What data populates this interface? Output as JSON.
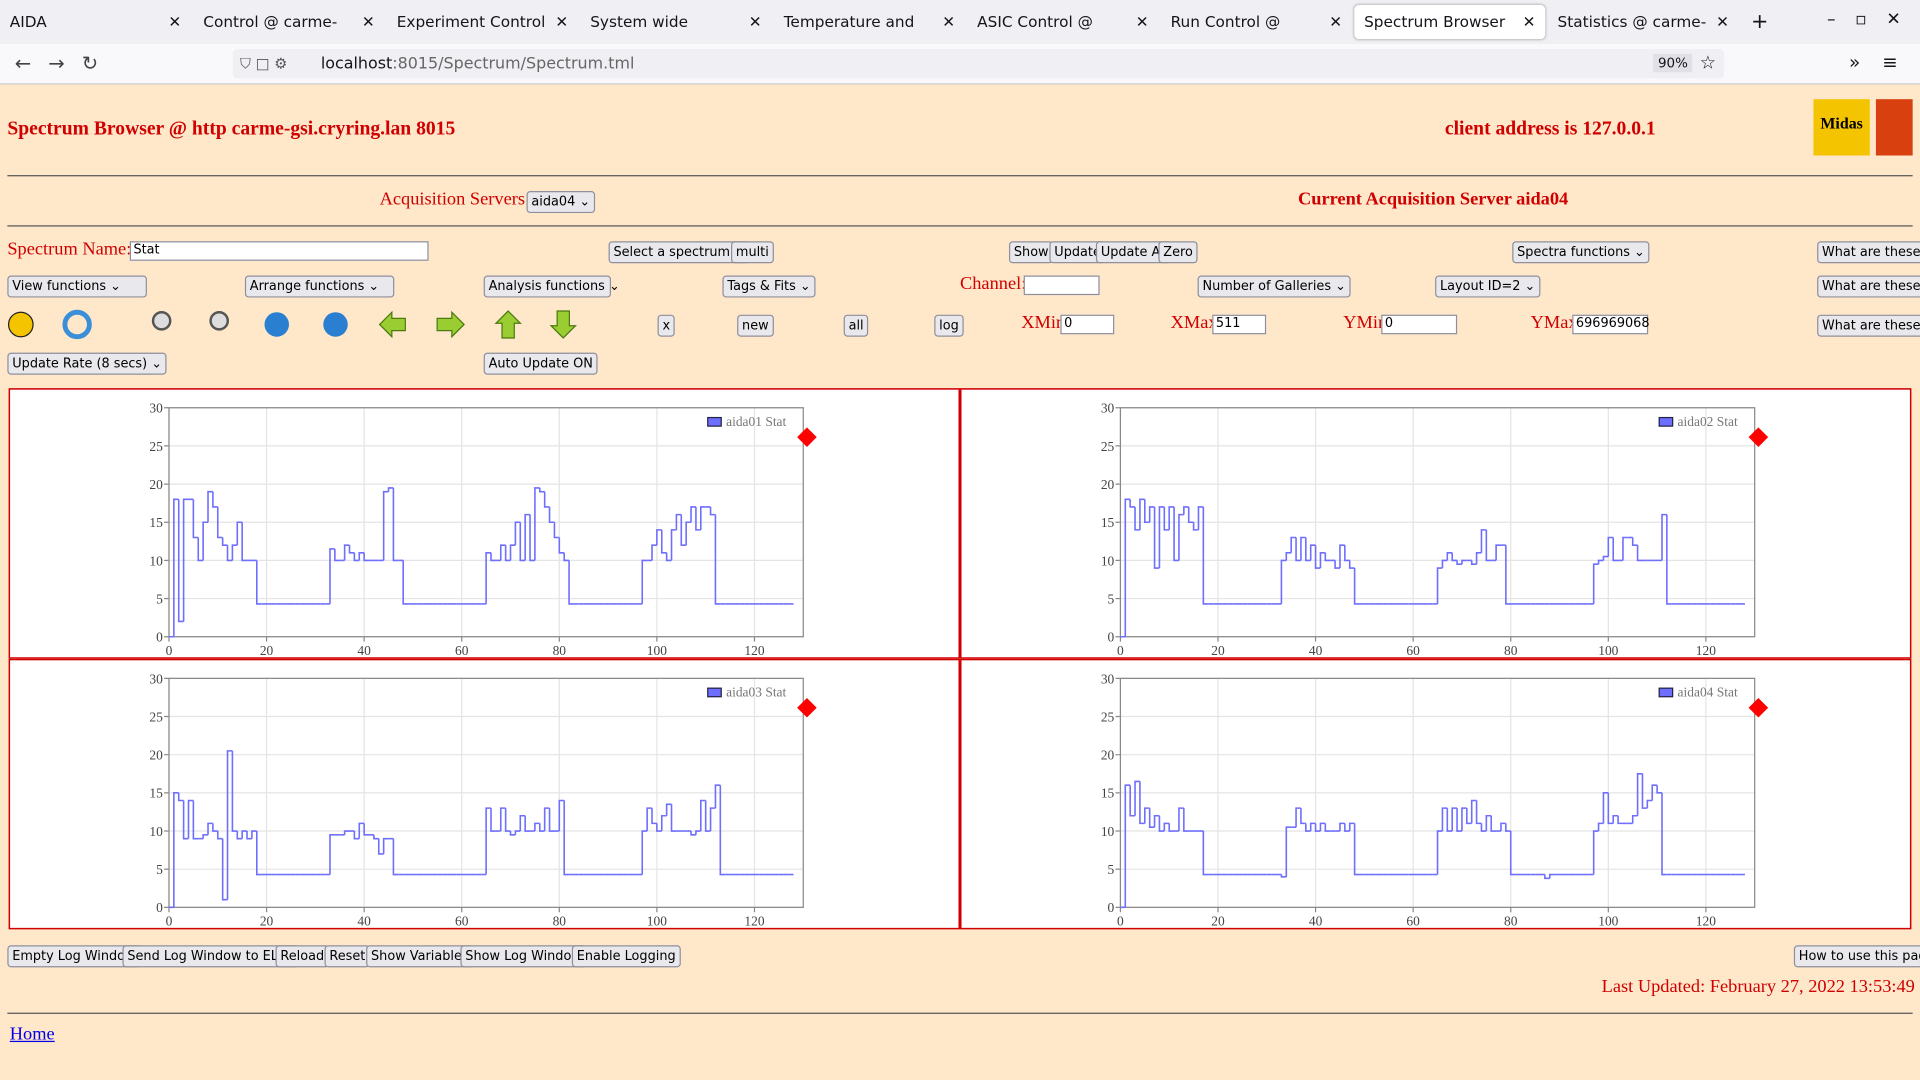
{
  "browser": {
    "tabs": [
      "AIDA",
      "Control @ carme-gsi",
      "Experiment Control @ ca",
      "System wide Checks @ c",
      "Temperature and status",
      "ASIC Control @ carme-g",
      "Run Control @ carme-gs",
      "Spectrum Browser @ ca",
      "Statistics @ carme-gsi"
    ],
    "url_host": "localhost",
    "url_rest": ":8015/Spectrum/Spectrum.tml",
    "zoom": "90%"
  },
  "header": {
    "title": "Spectrum Browser @ http carme-gsi.cryring.lan 8015",
    "client": "client address is 127.0.0.1",
    "logo": "Midas"
  },
  "servers": {
    "label": "Acquisition Servers",
    "selected": "aida04",
    "current": "Current Acquisition Server aida04"
  },
  "controls": {
    "spectrum_label": "Spectrum Name:",
    "spectrum_value": "Stat",
    "select_spectrum": "Select a spectrum",
    "multi": "multi",
    "show": "Show",
    "update": "Update",
    "update_all": "Update All",
    "zero": "Zero",
    "spectra_functions": "Spectra functions",
    "help": [
      "What are these?",
      "What are these?",
      "What are these?"
    ],
    "view_functions": "View functions",
    "arrange_functions": "Arrange functions",
    "analysis_functions": "Analysis functions",
    "tags_fits": "Tags & Fits",
    "channel": "Channel:",
    "galleries": "Number of Galleries",
    "layout": "Layout ID=2",
    "x": "x",
    "new": "new",
    "all": "all",
    "log": "log",
    "xmin_label": "XMin",
    "xmin": "0",
    "xmax_label": "XMax",
    "xmax": "511",
    "ymin_label": "YMin",
    "ymin": "0",
    "ymax_label": "YMax",
    "ymax": "696969068",
    "update_rate": "Update Rate (8 secs)",
    "auto_update": "Auto Update ON"
  },
  "chart_data": [
    {
      "type": "line",
      "x": [
        0,
        1,
        2,
        3,
        4,
        5,
        6,
        7,
        8,
        9,
        10,
        11,
        12,
        13,
        14,
        15,
        16,
        17,
        18,
        19,
        20,
        21,
        22,
        23,
        24,
        25,
        26,
        27,
        28,
        29,
        30,
        31,
        32,
        33,
        34,
        35,
        36,
        37,
        38,
        39,
        40,
        41,
        42,
        43,
        44,
        45,
        46,
        47,
        48,
        49,
        50,
        51,
        52,
        53,
        54,
        55,
        56,
        57,
        58,
        59,
        60,
        61,
        62,
        63,
        64,
        65,
        66,
        67,
        68,
        69,
        70,
        71,
        72,
        73,
        74,
        75,
        76,
        77,
        78,
        79,
        80,
        81,
        82,
        83,
        84,
        85,
        86,
        87,
        88,
        89,
        90,
        91,
        92,
        93,
        94,
        95,
        96,
        97,
        98,
        99,
        100,
        101,
        102,
        103,
        104,
        105,
        106,
        107,
        108,
        109,
        110,
        111,
        112,
        113,
        114,
        115,
        116,
        117,
        118,
        119,
        120,
        121,
        122,
        123,
        124,
        125,
        126,
        127
      ],
      "series": [
        {
          "name": "aida01 Stat",
          "color": "#6e6eff",
          "values": [
            0,
            18,
            2,
            18,
            18,
            13,
            10,
            15,
            19,
            17,
            13,
            12,
            10,
            12,
            15,
            10,
            10,
            10,
            4.3,
            4.3,
            4.3,
            4.3,
            4.3,
            4.3,
            4.3,
            4.3,
            4.3,
            4.3,
            4.3,
            4.3,
            4.3,
            4.3,
            4.3,
            11.5,
            10,
            10,
            12,
            11,
            10,
            11,
            10,
            10,
            10,
            10,
            19,
            19.5,
            10,
            10,
            4.3,
            4.3,
            4.3,
            4.3,
            4.3,
            4.3,
            4.3,
            4.3,
            4.3,
            4.3,
            4.3,
            4.3,
            4.3,
            4.3,
            4.3,
            4.3,
            4.3,
            11,
            10,
            10,
            12,
            10,
            12,
            15,
            10,
            16,
            10,
            19.5,
            19,
            17,
            15,
            13,
            11,
            10,
            4.3,
            4.3,
            4.3,
            4.3,
            4.3,
            4.3,
            4.3,
            4.3,
            4.3,
            4.3,
            4.3,
            4.3,
            4.3,
            4.3,
            4.3,
            10,
            10,
            12,
            14,
            11,
            10,
            14,
            16,
            12,
            15,
            17,
            14,
            17,
            17,
            16,
            4.3,
            4.3,
            4.3,
            4.3,
            4.3,
            4.3,
            4.3,
            4.3,
            4.3,
            4.3,
            4.3,
            4.3,
            4.3,
            4.3,
            4.3,
            4.3
          ]
        }
      ],
      "xlim": [
        0,
        130
      ],
      "ylim": [
        0,
        30
      ],
      "xticks": [
        0,
        20,
        40,
        60,
        80,
        100,
        120
      ],
      "yticks": [
        0,
        5,
        10,
        15,
        20,
        25,
        30
      ],
      "grid": true,
      "legend": "upper right"
    },
    {
      "type": "line",
      "x": [
        0,
        1,
        2,
        3,
        4,
        5,
        6,
        7,
        8,
        9,
        10,
        11,
        12,
        13,
        14,
        15,
        16,
        17,
        18,
        19,
        20,
        21,
        22,
        23,
        24,
        25,
        26,
        27,
        28,
        29,
        30,
        31,
        32,
        33,
        34,
        35,
        36,
        37,
        38,
        39,
        40,
        41,
        42,
        43,
        44,
        45,
        46,
        47,
        48,
        49,
        50,
        51,
        52,
        53,
        54,
        55,
        56,
        57,
        58,
        59,
        60,
        61,
        62,
        63,
        64,
        65,
        66,
        67,
        68,
        69,
        70,
        71,
        72,
        73,
        74,
        75,
        76,
        77,
        78,
        79,
        80,
        81,
        82,
        83,
        84,
        85,
        86,
        87,
        88,
        89,
        90,
        91,
        92,
        93,
        94,
        95,
        96,
        97,
        98,
        99,
        100,
        101,
        102,
        103,
        104,
        105,
        106,
        107,
        108,
        109,
        110,
        111,
        112,
        113,
        114,
        115,
        116,
        117,
        118,
        119,
        120,
        121,
        122,
        123,
        124,
        125,
        126,
        127
      ],
      "series": [
        {
          "name": "aida02 Stat",
          "color": "#6e6eff",
          "values": [
            0,
            18,
            17,
            14,
            18,
            15,
            17,
            9,
            17,
            14,
            17,
            10,
            16,
            17,
            15,
            14,
            17,
            4.3,
            4.3,
            4.3,
            4.3,
            4.3,
            4.3,
            4.3,
            4.3,
            4.3,
            4.3,
            4.3,
            4.3,
            4.3,
            4.3,
            4.3,
            4.3,
            10,
            11,
            13,
            10,
            13,
            10,
            12,
            9,
            11,
            10,
            10,
            9,
            12,
            10,
            9,
            4.3,
            4.3,
            4.3,
            4.3,
            4.3,
            4.3,
            4.3,
            4.3,
            4.3,
            4.3,
            4.3,
            4.3,
            4.3,
            4.3,
            4.3,
            4.3,
            4.3,
            9,
            10,
            11,
            10,
            9.5,
            10,
            10,
            9.5,
            11,
            14,
            10,
            10,
            12,
            12,
            4.3,
            4.3,
            4.3,
            4.3,
            4.3,
            4.3,
            4.3,
            4.3,
            4.3,
            4.3,
            4.3,
            4.3,
            4.3,
            4.3,
            4.3,
            4.3,
            4.3,
            4.3,
            9.5,
            10,
            10.5,
            13,
            10,
            10,
            13,
            13,
            12,
            10,
            10,
            10,
            10,
            10,
            16,
            4.3,
            4.3,
            4.3,
            4.3,
            4.3,
            4.3,
            4.3,
            4.3,
            4.3,
            4.3,
            4.3,
            4.3,
            4.3,
            4.3,
            4.3,
            4.3
          ]
        }
      ],
      "xlim": [
        0,
        130
      ],
      "ylim": [
        0,
        30
      ],
      "xticks": [
        0,
        20,
        40,
        60,
        80,
        100,
        120
      ],
      "yticks": [
        0,
        5,
        10,
        15,
        20,
        25,
        30
      ],
      "grid": true,
      "legend": "upper right"
    },
    {
      "type": "line",
      "x": [
        0,
        1,
        2,
        3,
        4,
        5,
        6,
        7,
        8,
        9,
        10,
        11,
        12,
        13,
        14,
        15,
        16,
        17,
        18,
        19,
        20,
        21,
        22,
        23,
        24,
        25,
        26,
        27,
        28,
        29,
        30,
        31,
        32,
        33,
        34,
        35,
        36,
        37,
        38,
        39,
        40,
        41,
        42,
        43,
        44,
        45,
        46,
        47,
        48,
        49,
        50,
        51,
        52,
        53,
        54,
        55,
        56,
        57,
        58,
        59,
        60,
        61,
        62,
        63,
        64,
        65,
        66,
        67,
        68,
        69,
        70,
        71,
        72,
        73,
        74,
        75,
        76,
        77,
        78,
        79,
        80,
        81,
        82,
        83,
        84,
        85,
        86,
        87,
        88,
        89,
        90,
        91,
        92,
        93,
        94,
        95,
        96,
        97,
        98,
        99,
        100,
        101,
        102,
        103,
        104,
        105,
        106,
        107,
        108,
        109,
        110,
        111,
        112,
        113,
        114,
        115,
        116,
        117,
        118,
        119,
        120,
        121,
        122,
        123,
        124,
        125,
        126,
        127
      ],
      "series": [
        {
          "name": "aida03 Stat",
          "color": "#6e6eff",
          "values": [
            0,
            15,
            14,
            9,
            14,
            9,
            9,
            9.5,
            11,
            10,
            9,
            1,
            20.5,
            10,
            9,
            10,
            9,
            10,
            4.3,
            4.3,
            4.3,
            4.3,
            4.3,
            4.3,
            4.3,
            4.3,
            4.3,
            4.3,
            4.3,
            4.3,
            4.3,
            4.3,
            4.3,
            9.5,
            9.5,
            9.5,
            10,
            10,
            9,
            11,
            9.5,
            9.5,
            9,
            7,
            9,
            9,
            4.3,
            4.3,
            4.3,
            4.3,
            4.3,
            4.3,
            4.3,
            4.3,
            4.3,
            4.3,
            4.3,
            4.3,
            4.3,
            4.3,
            4.3,
            4.3,
            4.3,
            4.3,
            4.3,
            13,
            10,
            10,
            13,
            10,
            9.5,
            10,
            12,
            10,
            10,
            11,
            10,
            13,
            10,
            10,
            14,
            4.3,
            4.3,
            4.3,
            4.3,
            4.3,
            4.3,
            4.3,
            4.3,
            4.3,
            4.3,
            4.3,
            4.3,
            4.3,
            4.3,
            4.3,
            4.3,
            10,
            13,
            11,
            10,
            12,
            13.5,
            10,
            10,
            10,
            10,
            9.5,
            10,
            14,
            10,
            13,
            16,
            4.3,
            4.3,
            4.3,
            4.3,
            4.3,
            4.3,
            4.3,
            4.3,
            4.3,
            4.3,
            4.3,
            4.3,
            4.3,
            4.3,
            4.3
          ]
        }
      ],
      "xlim": [
        0,
        130
      ],
      "ylim": [
        0,
        30
      ],
      "xticks": [
        0,
        20,
        40,
        60,
        80,
        100,
        120
      ],
      "yticks": [
        0,
        5,
        10,
        15,
        20,
        25,
        30
      ],
      "grid": true,
      "legend": "upper right"
    },
    {
      "type": "line",
      "x": [
        0,
        1,
        2,
        3,
        4,
        5,
        6,
        7,
        8,
        9,
        10,
        11,
        12,
        13,
        14,
        15,
        16,
        17,
        18,
        19,
        20,
        21,
        22,
        23,
        24,
        25,
        26,
        27,
        28,
        29,
        30,
        31,
        32,
        33,
        34,
        35,
        36,
        37,
        38,
        39,
        40,
        41,
        42,
        43,
        44,
        45,
        46,
        47,
        48,
        49,
        50,
        51,
        52,
        53,
        54,
        55,
        56,
        57,
        58,
        59,
        60,
        61,
        62,
        63,
        64,
        65,
        66,
        67,
        68,
        69,
        70,
        71,
        72,
        73,
        74,
        75,
        76,
        77,
        78,
        79,
        80,
        81,
        82,
        83,
        84,
        85,
        86,
        87,
        88,
        89,
        90,
        91,
        92,
        93,
        94,
        95,
        96,
        97,
        98,
        99,
        100,
        101,
        102,
        103,
        104,
        105,
        106,
        107,
        108,
        109,
        110,
        111,
        112,
        113,
        114,
        115,
        116,
        117,
        118,
        119,
        120,
        121,
        122,
        123,
        124,
        125,
        126,
        127
      ],
      "series": [
        {
          "name": "aida04 Stat",
          "color": "#6e6eff",
          "values": [
            0,
            16,
            12,
            16.5,
            11,
            13,
            10.5,
            12,
            10,
            11,
            10,
            10,
            13,
            10,
            10,
            10,
            10,
            4.3,
            4.3,
            4.3,
            4.3,
            4.3,
            4.3,
            4.3,
            4.3,
            4.3,
            4.3,
            4.3,
            4.3,
            4.3,
            4.3,
            4.3,
            4.3,
            4,
            10.5,
            10.5,
            13,
            11,
            10,
            11,
            10,
            11,
            10,
            10,
            10,
            11,
            10,
            11,
            4.3,
            4.3,
            4.3,
            4.3,
            4.3,
            4.3,
            4.3,
            4.3,
            4.3,
            4.3,
            4.3,
            4.3,
            4.3,
            4.3,
            4.3,
            4.3,
            4.3,
            10,
            13,
            10,
            13,
            10,
            13,
            11,
            14,
            11,
            10,
            12,
            10,
            10,
            11,
            10,
            4.3,
            4.3,
            4.3,
            4.3,
            4.3,
            4.3,
            4.3,
            3.8,
            4.3,
            4.3,
            4.3,
            4.3,
            4.3,
            4.3,
            4.3,
            4.3,
            4.3,
            10,
            11,
            15,
            11,
            12,
            11,
            11,
            11,
            12,
            17.5,
            13,
            14,
            16,
            15,
            4.3,
            4.3,
            4.3,
            4.3,
            4.3,
            4.3,
            4.3,
            4.3,
            4.3,
            4.3,
            4.3,
            4.3,
            4.3,
            4.3,
            4.3,
            4.3,
            4.3
          ]
        }
      ],
      "xlim": [
        0,
        130
      ],
      "ylim": [
        0,
        30
      ],
      "xticks": [
        0,
        20,
        40,
        60,
        80,
        100,
        120
      ],
      "yticks": [
        0,
        5,
        10,
        15,
        20,
        25,
        30
      ],
      "grid": true,
      "legend": "upper right"
    }
  ],
  "footer": {
    "buttons": [
      "Empty Log Window",
      "Send Log Window to ELog",
      "Reload",
      "Reset",
      "Show Variables",
      "Show Log Window",
      "Enable Logging"
    ],
    "howto": "How to use this page",
    "updated": "Last Updated: February 27, 2022 13:53:49",
    "home": "Home"
  }
}
